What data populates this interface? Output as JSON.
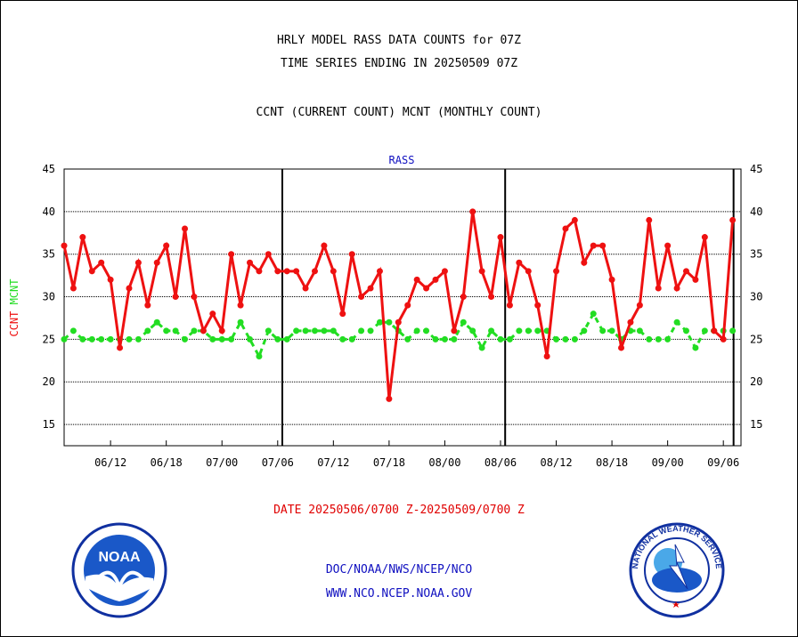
{
  "header": {
    "title_line1": "HRLY MODEL RASS DATA COUNTS for 07Z",
    "title_line2": "TIME SERIES ENDING IN 20250509 07Z",
    "subtitle": "CCNT (CURRENT COUNT) MCNT (MONTHLY COUNT)"
  },
  "footer": {
    "date_range": "DATE 20250506/0700 Z-20250509/0700 Z",
    "org_line": "DOC/NOAA/NWS/NCEP/NCO",
    "url_line": "WWW.NCO.NCEP.NOAA.GOV"
  },
  "logos": {
    "noaa_text": "NOAA",
    "nws_text": "NATIONAL WEATHER SERVICE"
  },
  "colors": {
    "ccnt": "#ee1111",
    "mcnt": "#22dd22",
    "title_blue": "#1010c0"
  },
  "chart_data": {
    "type": "line",
    "title": "RASS",
    "ylabel_series": [
      "CCNT",
      "MCNT"
    ],
    "ylim": [
      12.5,
      45
    ],
    "yticks": [
      15,
      20,
      25,
      30,
      35,
      40,
      45
    ],
    "xtick_labels": [
      "06/12",
      "06/18",
      "07/00",
      "07/06",
      "07/12",
      "07/18",
      "08/00",
      "08/06",
      "08/12",
      "08/18",
      "09/00",
      "09/06"
    ],
    "xtick_hours": [
      5,
      11,
      17,
      23,
      29,
      35,
      41,
      47,
      53,
      59,
      65,
      71
    ],
    "day_boundaries_hours": [
      23.5,
      47.5,
      72.1
    ],
    "x_start_hour": 0,
    "x_end_hour": 72.9,
    "grid": "horizontal dotted",
    "series": [
      {
        "name": "CCNT",
        "values": [
          36,
          31,
          37,
          33,
          34,
          32,
          24,
          31,
          34,
          29,
          34,
          36,
          30,
          38,
          30,
          26,
          28,
          26,
          35,
          29,
          34,
          33,
          35,
          33,
          33,
          33,
          31,
          33,
          36,
          33,
          28,
          35,
          30,
          31,
          33,
          18,
          27,
          29,
          32,
          31,
          32,
          33,
          26,
          30,
          40,
          33,
          30,
          37,
          29,
          34,
          33,
          29,
          23,
          33,
          38,
          39,
          34,
          36,
          36,
          32,
          24,
          27,
          29,
          39,
          31,
          36,
          31,
          33,
          32,
          37,
          26,
          25,
          39
        ]
      },
      {
        "name": "MCNT",
        "values": [
          25,
          26,
          25,
          25,
          25,
          25,
          25,
          25,
          25,
          26,
          27,
          26,
          26,
          25,
          26,
          26,
          25,
          25,
          25,
          27,
          25,
          23,
          26,
          25,
          25,
          26,
          26,
          26,
          26,
          26,
          25,
          25,
          26,
          26,
          27,
          27,
          26,
          25,
          26,
          26,
          25,
          25,
          25,
          27,
          26,
          24,
          26,
          25,
          25,
          26,
          26,
          26,
          26,
          25,
          25,
          25,
          26,
          28,
          26,
          26,
          25,
          26,
          26,
          25,
          25,
          25,
          27,
          26,
          24,
          26,
          26,
          26,
          26
        ]
      }
    ]
  }
}
